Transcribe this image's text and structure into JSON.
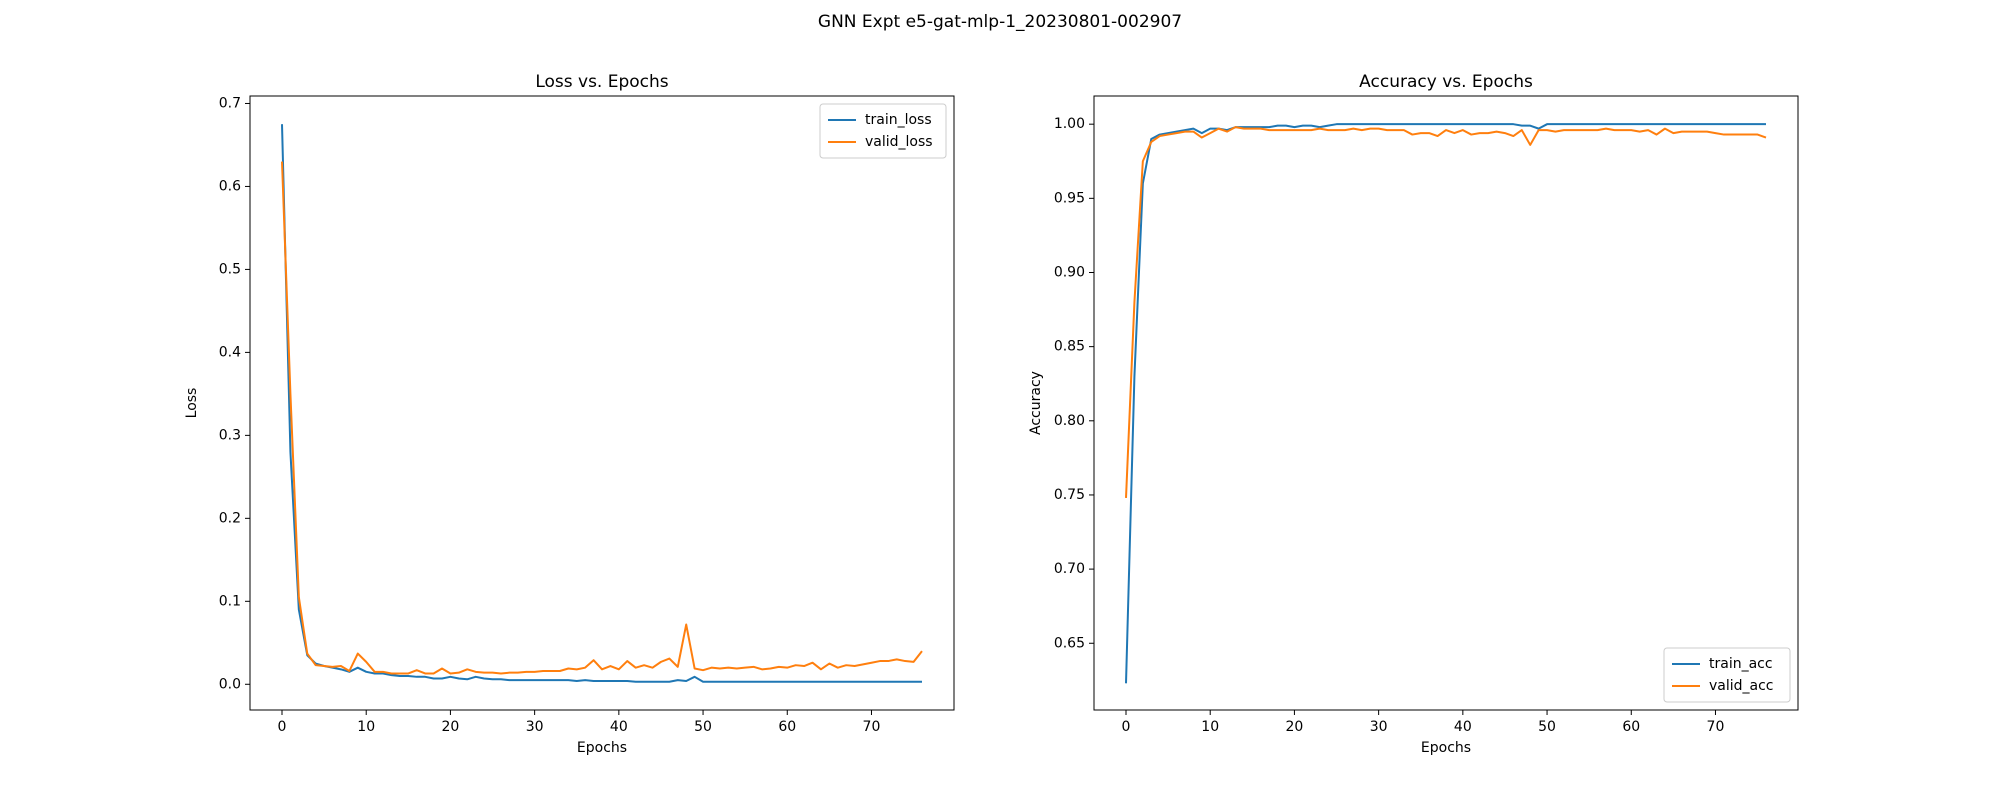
{
  "title": "GNN Expt e5-gat-mlp-1_20230801-002907",
  "chart_data": [
    {
      "type": "line",
      "title": "Loss vs. Epochs",
      "xlabel": "Epochs",
      "ylabel": "Loss",
      "x": [
        0,
        1,
        2,
        3,
        4,
        5,
        6,
        7,
        8,
        9,
        10,
        11,
        12,
        13,
        14,
        15,
        16,
        17,
        18,
        19,
        20,
        21,
        22,
        23,
        24,
        25,
        26,
        27,
        28,
        29,
        30,
        31,
        32,
        33,
        34,
        35,
        36,
        37,
        38,
        39,
        40,
        41,
        42,
        43,
        44,
        45,
        46,
        47,
        48,
        49,
        50,
        51,
        52,
        53,
        54,
        55,
        56,
        57,
        58,
        59,
        60,
        61,
        62,
        63,
        64,
        65,
        66,
        67,
        68,
        69,
        70,
        71,
        72,
        73,
        74,
        75,
        76
      ],
      "xlim": [
        -3.8,
        79.8
      ],
      "xticks": [
        0,
        10,
        20,
        30,
        40,
        50,
        60,
        70
      ],
      "ylim": [
        -0.031,
        0.709
      ],
      "yticks": [
        {
          "value": 0,
          "label": "0.0"
        },
        0.1,
        0.2,
        0.3,
        0.4,
        0.5,
        0.6,
        0.7
      ],
      "legend": "upper right",
      "series": [
        {
          "name": "train_loss",
          "color": "#1f77b4",
          "values": [
            0.675,
            0.28,
            0.09,
            0.035,
            0.025,
            0.022,
            0.02,
            0.018,
            0.015,
            0.02,
            0.015,
            0.013,
            0.013,
            0.011,
            0.01,
            0.01,
            0.009,
            0.009,
            0.007,
            0.007,
            0.009,
            0.007,
            0.006,
            0.009,
            0.007,
            0.006,
            0.006,
            0.005,
            0.005,
            0.005,
            0.005,
            0.005,
            0.005,
            0.005,
            0.005,
            0.004,
            0.005,
            0.004,
            0.004,
            0.004,
            0.004,
            0.004,
            0.003,
            0.003,
            0.003,
            0.003,
            0.003,
            0.005,
            0.004,
            0.009,
            0.003,
            0.003,
            0.003,
            0.003,
            0.003,
            0.003,
            0.003,
            0.003,
            0.003,
            0.003,
            0.003,
            0.003,
            0.003,
            0.003,
            0.003,
            0.003,
            0.003,
            0.003,
            0.003,
            0.003,
            0.003,
            0.003,
            0.003,
            0.003,
            0.003,
            0.003,
            0.003
          ]
        },
        {
          "name": "valid_loss",
          "color": "#ff7f0e",
          "values": [
            0.63,
            0.35,
            0.105,
            0.037,
            0.023,
            0.022,
            0.021,
            0.022,
            0.016,
            0.037,
            0.027,
            0.015,
            0.015,
            0.013,
            0.013,
            0.013,
            0.017,
            0.013,
            0.013,
            0.019,
            0.013,
            0.014,
            0.018,
            0.015,
            0.014,
            0.014,
            0.013,
            0.014,
            0.014,
            0.015,
            0.015,
            0.016,
            0.016,
            0.016,
            0.019,
            0.018,
            0.02,
            0.029,
            0.018,
            0.022,
            0.018,
            0.028,
            0.02,
            0.023,
            0.02,
            0.027,
            0.031,
            0.021,
            0.072,
            0.019,
            0.017,
            0.02,
            0.019,
            0.02,
            0.019,
            0.02,
            0.021,
            0.018,
            0.019,
            0.021,
            0.02,
            0.023,
            0.022,
            0.026,
            0.018,
            0.025,
            0.02,
            0.023,
            0.022,
            0.024,
            0.026,
            0.028,
            0.028,
            0.03,
            0.028,
            0.027,
            0.04
          ]
        }
      ]
    },
    {
      "type": "line",
      "title": "Accuracy vs. Epochs",
      "xlabel": "Epochs",
      "ylabel": "Accuracy",
      "x": [
        0,
        1,
        2,
        3,
        4,
        5,
        6,
        7,
        8,
        9,
        10,
        11,
        12,
        13,
        14,
        15,
        16,
        17,
        18,
        19,
        20,
        21,
        22,
        23,
        24,
        25,
        26,
        27,
        28,
        29,
        30,
        31,
        32,
        33,
        34,
        35,
        36,
        37,
        38,
        39,
        40,
        41,
        42,
        43,
        44,
        45,
        46,
        47,
        48,
        49,
        50,
        51,
        52,
        53,
        54,
        55,
        56,
        57,
        58,
        59,
        60,
        61,
        62,
        63,
        64,
        65,
        66,
        67,
        68,
        69,
        70,
        71,
        72,
        73,
        74,
        75,
        76
      ],
      "xlim": [
        -3.8,
        79.8
      ],
      "xticks": [
        0,
        10,
        20,
        30,
        40,
        50,
        60,
        70
      ],
      "ylim": [
        0.605,
        1.019
      ],
      "yticks": [
        0.65,
        {
          "value": 0.7,
          "label": "0.70"
        },
        0.75,
        {
          "value": 0.8,
          "label": "0.80"
        },
        0.85,
        {
          "value": 0.9,
          "label": "0.90"
        },
        0.95,
        {
          "value": 1,
          "label": "1.00"
        }
      ],
      "legend": "lower right",
      "series": [
        {
          "name": "train_acc",
          "color": "#1f77b4",
          "values": [
            0.623,
            0.83,
            0.96,
            0.99,
            0.993,
            0.994,
            0.995,
            0.996,
            0.997,
            0.994,
            0.997,
            0.997,
            0.996,
            0.998,
            0.998,
            0.998,
            0.998,
            0.998,
            0.999,
            0.999,
            0.998,
            0.999,
            0.999,
            0.998,
            0.999,
            1.0,
            1.0,
            1.0,
            1.0,
            1.0,
            1.0,
            1.0,
            1.0,
            1.0,
            1.0,
            1.0,
            1.0,
            1.0,
            1.0,
            1.0,
            1.0,
            1.0,
            1.0,
            1.0,
            1.0,
            1.0,
            1.0,
            0.999,
            0.999,
            0.997,
            1.0,
            1.0,
            1.0,
            1.0,
            1.0,
            1.0,
            1.0,
            1.0,
            1.0,
            1.0,
            1.0,
            1.0,
            1.0,
            1.0,
            1.0,
            1.0,
            1.0,
            1.0,
            1.0,
            1.0,
            1.0,
            1.0,
            1.0,
            1.0,
            1.0,
            1.0,
            1.0
          ]
        },
        {
          "name": "valid_acc",
          "color": "#ff7f0e",
          "values": [
            0.748,
            0.88,
            0.975,
            0.988,
            0.992,
            0.993,
            0.994,
            0.995,
            0.995,
            0.991,
            0.994,
            0.997,
            0.995,
            0.998,
            0.997,
            0.997,
            0.997,
            0.996,
            0.996,
            0.996,
            0.996,
            0.996,
            0.996,
            0.997,
            0.996,
            0.996,
            0.996,
            0.997,
            0.996,
            0.997,
            0.997,
            0.996,
            0.996,
            0.996,
            0.993,
            0.994,
            0.994,
            0.992,
            0.996,
            0.994,
            0.996,
            0.993,
            0.994,
            0.994,
            0.995,
            0.994,
            0.992,
            0.996,
            0.986,
            0.996,
            0.996,
            0.995,
            0.996,
            0.996,
            0.996,
            0.996,
            0.996,
            0.997,
            0.996,
            0.996,
            0.996,
            0.995,
            0.996,
            0.993,
            0.997,
            0.994,
            0.995,
            0.995,
            0.995,
            0.995,
            0.994,
            0.993,
            0.993,
            0.993,
            0.993,
            0.993,
            0.991
          ]
        }
      ]
    }
  ]
}
